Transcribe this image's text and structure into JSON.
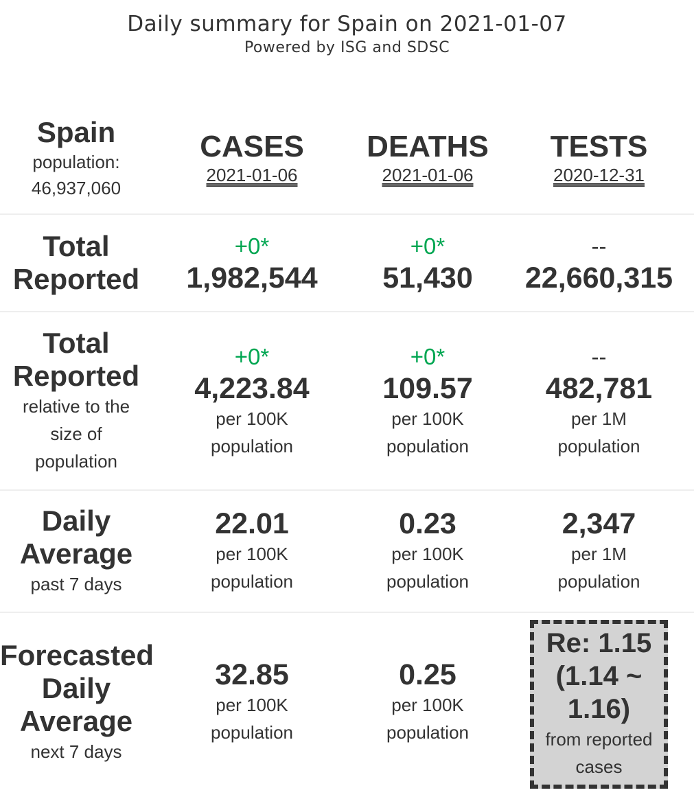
{
  "header": {
    "title": "Daily summary for Spain on 2021-01-07",
    "subtitle": "Powered by ISG and SDSC"
  },
  "country": {
    "name": "Spain",
    "population_label": "population:",
    "population": "46,937,060"
  },
  "columns": [
    {
      "title": "CASES",
      "date": "2021-01-06"
    },
    {
      "title": "DEATHS",
      "date": "2021-01-06"
    },
    {
      "title": "TESTS",
      "date": "2020-12-31"
    }
  ],
  "colors": {
    "delta_green": "#00a651",
    "text": "#333333",
    "re_box_bg": "#d3d3d3"
  },
  "rows": {
    "total": {
      "title_line1": "Total",
      "title_line2": "Reported",
      "cases": {
        "delta": "+0*",
        "value": "1,982,544"
      },
      "deaths": {
        "delta": "+0*",
        "value": "51,430"
      },
      "tests": {
        "delta": "--",
        "value": "22,660,315"
      }
    },
    "relative": {
      "title_line1": "Total",
      "title_line2": "Reported",
      "sub_line1": "relative to the",
      "sub_line2": "size of",
      "sub_line3": "population",
      "cases": {
        "delta": "+0*",
        "value": "4,223.84",
        "unit_line1": "per 100K",
        "unit_line2": "population"
      },
      "deaths": {
        "delta": "+0*",
        "value": "109.57",
        "unit_line1": "per 100K",
        "unit_line2": "population"
      },
      "tests": {
        "delta": "--",
        "value": "482,781",
        "unit_line1": "per 1M",
        "unit_line2": "population"
      }
    },
    "daily": {
      "title_line1": "Daily",
      "title_line2": "Average",
      "sub_line1": "past 7 days",
      "cases": {
        "value": "22.01",
        "unit_line1": "per 100K",
        "unit_line2": "population"
      },
      "deaths": {
        "value": "0.23",
        "unit_line1": "per 100K",
        "unit_line2": "population"
      },
      "tests": {
        "value": "2,347",
        "unit_line1": "per 1M",
        "unit_line2": "population"
      }
    },
    "forecast": {
      "title_line1": "Forecasted",
      "title_line2": "Daily",
      "title_line3": "Average",
      "sub_line1": "next 7 days",
      "cases": {
        "value": "32.85",
        "unit_line1": "per 100K",
        "unit_line2": "population"
      },
      "deaths": {
        "value": "0.25",
        "unit_line1": "per 100K",
        "unit_line2": "population"
      },
      "re": {
        "line1": "Re: 1.15",
        "line2": "(1.14 ~",
        "line3": "1.16)",
        "note_line1": "from reported",
        "note_line2": "cases"
      }
    }
  }
}
